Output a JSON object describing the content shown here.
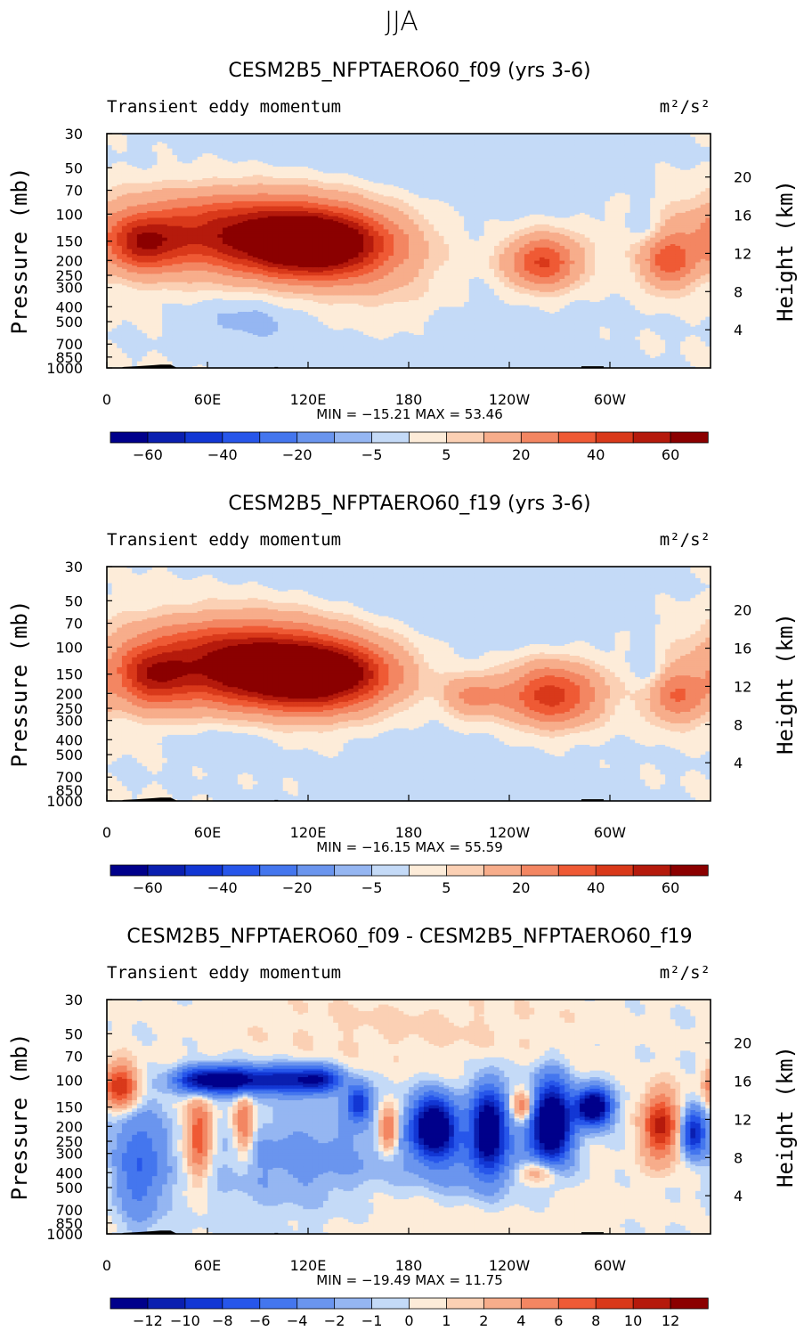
{
  "season": "JJA",
  "chart_data": [
    {
      "type": "heatmap",
      "title": "CESM2B5_NFPTAERO60_f09 (yrs 3-6)",
      "subtitle_left": "Transient eddy momentum",
      "units": "m²/s²",
      "ylabel": "Pressure (mb)",
      "ylabel_right": "Height (km)",
      "x_ticks": [
        "0",
        "60E",
        "120E",
        "180",
        "120W",
        "60W"
      ],
      "x_tick_values": [
        0,
        60,
        120,
        180,
        240,
        300
      ],
      "xlim": [
        0,
        360
      ],
      "y_ticks": [
        "30",
        "50",
        "70",
        "100",
        "150",
        "200",
        "250",
        "300",
        "400",
        "500",
        "700",
        "850",
        "1000"
      ],
      "y_tick_values": [
        30,
        50,
        70,
        100,
        150,
        200,
        250,
        300,
        400,
        500,
        700,
        850,
        1000
      ],
      "ylim": [
        1000,
        30
      ],
      "right_ticks": [
        "20",
        "16",
        "12",
        "8",
        "4"
      ],
      "right_tick_values": [
        20,
        16,
        12,
        8,
        4
      ],
      "stats": "MIN = −15.21   MAX =  53.46",
      "min": -15.21,
      "max": 53.46,
      "levels": [
        -70,
        -60,
        -50,
        -40,
        -30,
        -20,
        -10,
        -5,
        0,
        5,
        10,
        20,
        30,
        40,
        50,
        60,
        70
      ],
      "colorbar_labels": [
        "−60",
        "−40",
        "−20",
        "−5",
        "5",
        "20",
        "40",
        "60"
      ],
      "colorbar_label_levels": [
        -60,
        -40,
        -20,
        -5,
        5,
        20,
        40,
        60
      ],
      "features": [
        {
          "lon": 65,
          "p": 130,
          "value": 42,
          "lon_width": 52,
          "p_width_log": 0.17
        },
        {
          "lon": 128,
          "p": 160,
          "value": 53,
          "lon_width": 26,
          "p_width_log": 0.14
        },
        {
          "lon": 110,
          "p": 150,
          "value": 30,
          "lon_width": 38,
          "p_width_log": 0.2
        },
        {
          "lon": 22,
          "p": 160,
          "value": 35,
          "lon_width": 14,
          "p_width_log": 0.12
        },
        {
          "lon": 260,
          "p": 205,
          "value": 42,
          "lon_width": 15,
          "p_width_log": 0.12
        },
        {
          "lon": 335,
          "p": 205,
          "value": 33,
          "lon_width": 11,
          "p_width_log": 0.12
        },
        {
          "lon": 170,
          "p": 250,
          "value": 8,
          "lon_width": 25,
          "p_width_log": 0.25
        },
        {
          "lon": 320,
          "p": 115,
          "value": -9,
          "lon_width": 7,
          "p_width_log": 0.1
        },
        {
          "lon": 85,
          "p": 450,
          "value": -7,
          "lon_width": 22,
          "p_width_log": 0.15
        },
        {
          "lon": 200,
          "p": 600,
          "value": -3,
          "lon_width": 60,
          "p_width_log": 0.3
        },
        {
          "lon": 180,
          "p": 50,
          "value": -4,
          "lon_width": 90,
          "p_width_log": 0.3
        }
      ]
    },
    {
      "type": "heatmap",
      "title": "CESM2B5_NFPTAERO60_f19 (yrs 3-6)",
      "subtitle_left": "Transient eddy momentum",
      "units": "m²/s²",
      "ylabel": "Pressure (mb)",
      "ylabel_right": "Height (km)",
      "x_ticks": [
        "0",
        "60E",
        "120E",
        "180",
        "120W",
        "60W"
      ],
      "x_tick_values": [
        0,
        60,
        120,
        180,
        240,
        300
      ],
      "xlim": [
        0,
        360
      ],
      "y_ticks": [
        "30",
        "50",
        "70",
        "100",
        "150",
        "200",
        "250",
        "300",
        "400",
        "500",
        "700",
        "850",
        "1000"
      ],
      "y_tick_values": [
        30,
        50,
        70,
        100,
        150,
        200,
        250,
        300,
        400,
        500,
        700,
        850,
        1000
      ],
      "ylim": [
        1000,
        30
      ],
      "right_ticks": [
        "20",
        "16",
        "12",
        "8",
        "4"
      ],
      "right_tick_values": [
        20,
        16,
        12,
        8,
        4
      ],
      "stats": "MIN = −16.15   MAX =  55.59",
      "min": -16.15,
      "max": 55.59,
      "levels": [
        -70,
        -60,
        -50,
        -40,
        -30,
        -20,
        -10,
        -5,
        0,
        5,
        10,
        20,
        30,
        40,
        50,
        60,
        70
      ],
      "colorbar_labels": [
        "−60",
        "−40",
        "−20",
        "−5",
        "5",
        "20",
        "40",
        "60"
      ],
      "colorbar_label_levels": [
        -60,
        -40,
        -20,
        -5,
        5,
        20,
        40,
        60
      ],
      "features": [
        {
          "lon": 75,
          "p": 120,
          "value": 44,
          "lon_width": 48,
          "p_width_log": 0.18
        },
        {
          "lon": 130,
          "p": 155,
          "value": 55,
          "lon_width": 28,
          "p_width_log": 0.14
        },
        {
          "lon": 95,
          "p": 150,
          "value": 32,
          "lon_width": 40,
          "p_width_log": 0.2
        },
        {
          "lon": 27,
          "p": 160,
          "value": 33,
          "lon_width": 14,
          "p_width_log": 0.13
        },
        {
          "lon": 265,
          "p": 205,
          "value": 46,
          "lon_width": 20,
          "p_width_log": 0.14
        },
        {
          "lon": 218,
          "p": 210,
          "value": 22,
          "lon_width": 12,
          "p_width_log": 0.1
        },
        {
          "lon": 340,
          "p": 210,
          "value": 28,
          "lon_width": 13,
          "p_width_log": 0.12
        },
        {
          "lon": 322,
          "p": 140,
          "value": -9,
          "lon_width": 7,
          "p_width_log": 0.12
        },
        {
          "lon": 75,
          "p": 380,
          "value": -7,
          "lon_width": 22,
          "p_width_log": 0.12
        },
        {
          "lon": 210,
          "p": 600,
          "value": -3,
          "lon_width": 60,
          "p_width_log": 0.3
        },
        {
          "lon": 200,
          "p": 60,
          "value": -4,
          "lon_width": 80,
          "p_width_log": 0.3
        }
      ]
    },
    {
      "type": "heatmap",
      "title": "CESM2B5_NFPTAERO60_f09 - CESM2B5_NFPTAERO60_f19",
      "subtitle_left": "Transient eddy momentum",
      "units": "m²/s²",
      "ylabel": "Pressure (mb)",
      "ylabel_right": "Height (km)",
      "x_ticks": [
        "0",
        "60E",
        "120E",
        "180",
        "120W",
        "60W"
      ],
      "x_tick_values": [
        0,
        60,
        120,
        180,
        240,
        300
      ],
      "xlim": [
        0,
        360
      ],
      "y_ticks": [
        "30",
        "50",
        "70",
        "100",
        "150",
        "200",
        "250",
        "300",
        "400",
        "500",
        "700",
        "850",
        "1000"
      ],
      "y_tick_values": [
        30,
        50,
        70,
        100,
        150,
        200,
        250,
        300,
        400,
        500,
        700,
        850,
        1000
      ],
      "ylim": [
        1000,
        30
      ],
      "right_ticks": [
        "20",
        "16",
        "12",
        "8",
        "4"
      ],
      "right_tick_values": [
        20,
        16,
        12,
        8,
        4
      ],
      "stats": "MIN = −19.49   MAX =  11.75",
      "min": -19.49,
      "max": 11.75,
      "levels": [
        -14,
        -12,
        -10,
        -8,
        -6,
        -4,
        -2,
        -1,
        0,
        1,
        2,
        4,
        6,
        8,
        10,
        12,
        14
      ],
      "colorbar_labels": [
        "−12",
        "−10",
        "−8",
        "−6",
        "−4",
        "−2",
        "−1",
        "0",
        "1",
        "2",
        "4",
        "6",
        "8",
        "10",
        "12"
      ],
      "colorbar_label_levels": [
        -12,
        -10,
        -8,
        -6,
        -4,
        -2,
        -1,
        0,
        1,
        2,
        4,
        6,
        8,
        10,
        12
      ],
      "features": [
        {
          "lon": 8,
          "p": 110,
          "value": 10,
          "lon_width": 7,
          "p_width_log": 0.1
        },
        {
          "lon": 55,
          "p": 100,
          "value": -12,
          "lon_width": 10,
          "p_width_log": 0.06
        },
        {
          "lon": 75,
          "p": 100,
          "value": -13,
          "lon_width": 10,
          "p_width_log": 0.06
        },
        {
          "lon": 100,
          "p": 100,
          "value": -11,
          "lon_width": 12,
          "p_width_log": 0.06
        },
        {
          "lon": 125,
          "p": 100,
          "value": -12,
          "lon_width": 10,
          "p_width_log": 0.06
        },
        {
          "lon": 150,
          "p": 140,
          "value": -10,
          "lon_width": 5,
          "p_width_log": 0.08
        },
        {
          "lon": 55,
          "p": 230,
          "value": 8,
          "lon_width": 5,
          "p_width_log": 0.18
        },
        {
          "lon": 82,
          "p": 190,
          "value": 7,
          "lon_width": 4,
          "p_width_log": 0.14
        },
        {
          "lon": 168,
          "p": 210,
          "value": 8,
          "lon_width": 4,
          "p_width_log": 0.1
        },
        {
          "lon": 195,
          "p": 200,
          "value": -17,
          "lon_width": 9,
          "p_width_log": 0.13
        },
        {
          "lon": 228,
          "p": 200,
          "value": -15,
          "lon_width": 7,
          "p_width_log": 0.18
        },
        {
          "lon": 265,
          "p": 190,
          "value": -19,
          "lon_width": 8,
          "p_width_log": 0.18
        },
        {
          "lon": 290,
          "p": 150,
          "value": -18,
          "lon_width": 7,
          "p_width_log": 0.08
        },
        {
          "lon": 330,
          "p": 200,
          "value": 11,
          "lon_width": 7,
          "p_width_log": 0.15
        },
        {
          "lon": 350,
          "p": 220,
          "value": -11,
          "lon_width": 5,
          "p_width_log": 0.1
        },
        {
          "lon": 248,
          "p": 150,
          "value": 7,
          "lon_width": 5,
          "p_width_log": 0.07
        },
        {
          "lon": 258,
          "p": 390,
          "value": 6,
          "lon_width": 8,
          "p_width_log": 0.06
        },
        {
          "lon": 20,
          "p": 350,
          "value": -6,
          "lon_width": 10,
          "p_width_log": 0.25
        },
        {
          "lon": 120,
          "p": 350,
          "value": -3,
          "lon_width": 40,
          "p_width_log": 0.25
        },
        {
          "lon": 220,
          "p": 350,
          "value": -4,
          "lon_width": 30,
          "p_width_log": 0.2
        },
        {
          "lon": 200,
          "p": 600,
          "value": 1.5,
          "lon_width": 70,
          "p_width_log": 0.2
        },
        {
          "lon": 180,
          "p": 45,
          "value": 1.2,
          "lon_width": 90,
          "p_width_log": 0.2
        }
      ]
    }
  ],
  "palette": [
    "#00008b",
    "#0a1fb0",
    "#1237d4",
    "#2756ea",
    "#4476ee",
    "#6a95ee",
    "#95b6f2",
    "#c4daf7",
    "#fdecd9",
    "#fbd0b4",
    "#f7ad8b",
    "#f38662",
    "#ef5a35",
    "#d9391a",
    "#b51a0c",
    "#8b0000"
  ],
  "terrain_color": "#000000"
}
